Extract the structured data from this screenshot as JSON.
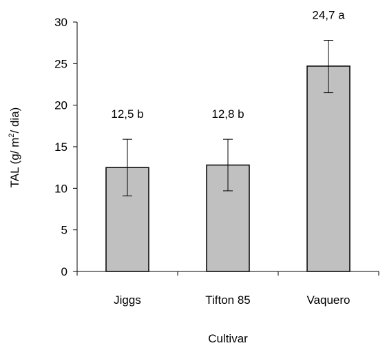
{
  "chart_data": {
    "type": "bar",
    "categories": [
      "Jiggs",
      "Tifton 85",
      "Vaquero"
    ],
    "values": [
      12.5,
      12.8,
      24.7
    ],
    "error_bars": [
      {
        "low": 9.1,
        "high": 15.9
      },
      {
        "low": 9.7,
        "high": 15.9
      },
      {
        "low": 21.5,
        "high": 27.8
      }
    ],
    "data_labels": [
      "12,5 b",
      "12,8 b",
      "24,7 a"
    ],
    "xlabel": "Cultivar",
    "ylabel_main": "TAL (g/ m",
    "ylabel_sup": "2",
    "ylabel_end": "/ dia)",
    "ylim": [
      0,
      30
    ],
    "yticks": [
      0,
      5,
      10,
      15,
      20,
      25,
      30
    ],
    "grid": false,
    "legend": "none",
    "bar_color": "#c0c0c0"
  }
}
